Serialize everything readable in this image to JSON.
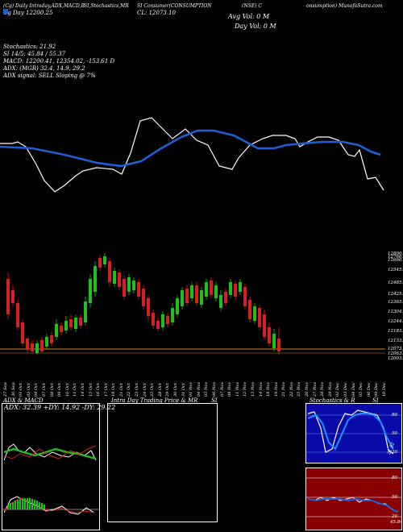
{
  "header": {
    "line1": "(Cg) Daily Intraday,ADX,MACD,B",
    "line1b": "SI,Stochastics,MR",
    "line1c": "SI Consumer(CONSUMPTION",
    "line1d": "(NSE) C",
    "line1e": "onsumption) MunafaSutra.com",
    "line2a": "Cg  Day  12200.25",
    "line2b": "CL: 12073.10",
    "avg_vol": "Avg Vol: 0   M",
    "day_vol": "Day Vol: 0   M",
    "price_right": "12200.25",
    "stochastics": "Stochastics: 21.92",
    "si": "SI 14/5: 45.84  /  55.37",
    "macd": "MACD: 12200.41,  12354.02,  -153.61 D",
    "adx": "ADX:                    (MGR) 32.4,  14.9,  29.2",
    "adx_signal": "ADX  signal: SELL  Sloping @ 7%"
  },
  "price_labels": [
    "12800.1",
    "12766.1",
    "12666.1",
    "12545.75",
    "12485.0",
    "12425.15",
    "12365.3",
    "12304.2",
    "12244.2",
    "12183.95",
    "12133.95",
    "12073.1",
    "12063.65",
    "12003.5"
  ],
  "dates": [
    "27 Sep",
    "30 Sep",
    "01 Oct",
    "03 Oct",
    "04 Oct",
    "07 Oct",
    "08 Oct",
    "09 Oct",
    "10 Oct",
    "11 Oct",
    "14 Oct",
    "15 Oct",
    "16 Oct",
    "17 Oct",
    "18 Oct",
    "21 Oct",
    "22 Oct",
    "23 Oct",
    "24 Oct",
    "25 Oct",
    "28 Oct",
    "29 Oct",
    "30 Oct",
    "31 Oct",
    "01 Nov",
    "04 Nov",
    "05 Nov",
    "06 Nov",
    "07 Nov",
    "08 Nov",
    "11 Nov",
    "12 Nov",
    "13 Nov",
    "14 Nov",
    "18 Nov",
    "19 Nov",
    "21 Nov",
    "22 Nov",
    "25 Nov",
    "26 Nov",
    "27 Nov",
    "28 Nov",
    "29 Nov",
    "02 Dec",
    "03 Dec",
    "04 Dec",
    "05 Dec",
    "06 Dec",
    "09 Dec",
    "10 Dec"
  ],
  "panels": {
    "adx_title": "ADX  & MACD",
    "adx_values": "ADX: 32.39  +DY: 14.92  -DY: 29.22",
    "intraday_title": "Intra  Day Trading Price  & MR",
    "intraday_suffix": "SI",
    "stoch_title": "Stochastics & R",
    "stoch_suffix": "SI",
    "stoch_ticks": [
      "80",
      "50",
      "20"
    ],
    "stoch_value": "21.92",
    "rsi_ticks": [
      "80",
      "50",
      "20"
    ],
    "rsi_value": "45.84"
  },
  "colors": {
    "ma_line": "#1f5fd6",
    "up": "#1fbf1f",
    "down": "#d61f1f",
    "orange": "#d9822b",
    "stoch_bg": "#0a0aa8",
    "rsi_bg": "#8a0000"
  }
}
